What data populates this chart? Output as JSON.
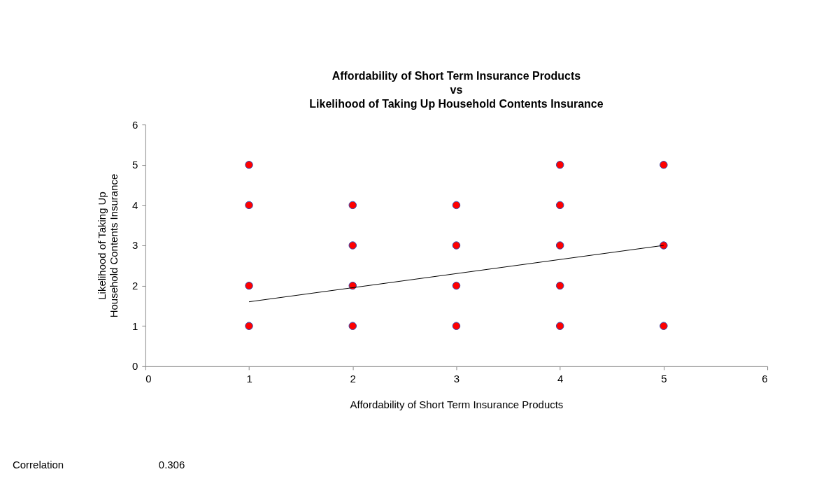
{
  "chart_data": {
    "type": "scatter",
    "title": "Affordability of Short Term Insurance Products\nvs\nLikelihood of Taking Up Household Contents Insurance",
    "xlabel": "Affordability of Short Term Insurance Products",
    "ylabel": "Likelihood of Taking Up\nHousehold Contents Insurance",
    "series": [
      {
        "color": "#ff0000",
        "x": [
          1,
          1,
          1,
          1,
          2,
          2,
          2,
          2,
          3,
          3,
          3,
          3,
          4,
          4,
          4,
          4,
          4,
          5,
          5,
          5
        ],
        "values": [
          5,
          4,
          2,
          1,
          4,
          3,
          2,
          1,
          4,
          3,
          2,
          1,
          5,
          4,
          3,
          2,
          1,
          5,
          3,
          1
        ]
      },
      {
        "type": "line",
        "color": "#000000",
        "marker": "none",
        "line_style": "solid",
        "x": [
          1,
          5
        ],
        "values": [
          1.6,
          3.0
        ]
      }
    ],
    "marker": "circle",
    "xlim": [
      0,
      6
    ],
    "xticks": [
      0,
      1,
      2,
      3,
      4,
      5,
      6
    ],
    "ylim": [
      0,
      6
    ],
    "yticks": [
      0,
      1,
      2,
      3,
      4,
      5,
      6
    ],
    "grid": false,
    "annotations": [
      "Correlation",
      "0.306"
    ]
  }
}
